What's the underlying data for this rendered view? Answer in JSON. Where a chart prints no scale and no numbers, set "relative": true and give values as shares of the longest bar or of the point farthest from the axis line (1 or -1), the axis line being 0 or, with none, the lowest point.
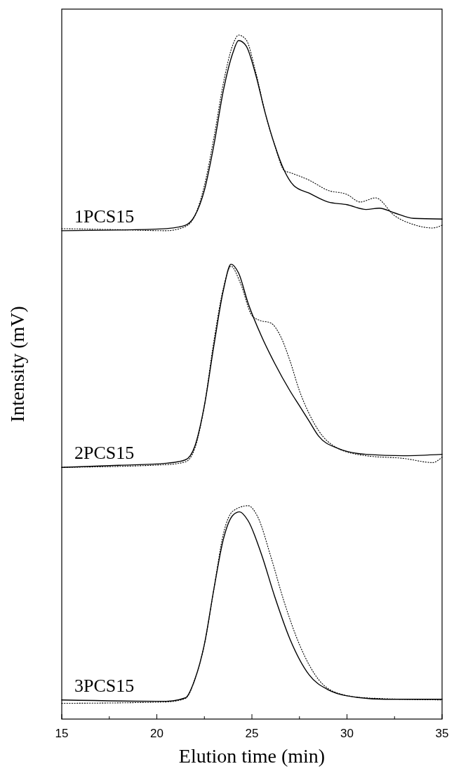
{
  "chart_data": {
    "type": "line",
    "relative": true,
    "xlabel": "Elution time (min)",
    "ylabel": "Intensity (mV)",
    "xlim": [
      15,
      35
    ],
    "xticks": [
      15,
      {
        "value": 17.5,
        "label": null
      },
      20,
      {
        "value": 22.5,
        "label": null
      },
      25,
      {
        "value": 27.5,
        "label": null
      },
      30,
      {
        "value": 32.5,
        "label": null
      },
      35
    ],
    "annotations": [
      "1PCS15",
      "2PCS15",
      "3PCS15"
    ],
    "series": [
      {
        "color": "#000000",
        "line_style": "solid",
        "x": [
          15,
          18,
          20.5,
          21.5,
          22,
          22.5,
          23,
          23.5,
          24,
          24.3,
          24.7,
          25.2,
          25.7,
          26.2,
          26.7,
          27.2,
          28,
          29,
          30,
          31,
          31.7,
          32.5,
          33.5,
          35
        ],
        "values": [
          0.714,
          0.715,
          0.717,
          0.722,
          0.736,
          0.773,
          0.839,
          0.919,
          0.974,
          0.992,
          0.984,
          0.942,
          0.886,
          0.839,
          0.802,
          0.78,
          0.769,
          0.756,
          0.752,
          0.745,
          0.747,
          0.74,
          0.732,
          0.731
        ]
      },
      {
        "color": "#000000",
        "line_style": "dotted",
        "x": [
          15,
          18,
          20.5,
          21.5,
          22,
          22.5,
          23,
          23.5,
          24,
          24.3,
          24.7,
          25.2,
          25.7,
          26.2,
          26.7,
          27,
          28,
          29,
          30,
          30.7,
          31.5,
          32.5,
          33.5,
          34.5,
          35
        ],
        "values": [
          0.717,
          0.7155,
          0.714,
          0.72,
          0.736,
          0.78,
          0.85,
          0.93,
          0.986,
          1,
          0.993,
          0.946,
          0.886,
          0.839,
          0.802,
          0.799,
          0.788,
          0.773,
          0.767,
          0.756,
          0.762,
          0.736,
          0.723,
          0.718,
          0.722
        ]
      },
      {
        "color": "#000000",
        "line_style": "solid",
        "x": [
          15,
          18,
          20.5,
          21.5,
          22,
          22.5,
          23,
          23.5,
          23.9,
          24.3,
          24.8,
          25.5,
          26.2,
          27,
          27.5,
          28,
          28.5,
          29.5,
          31,
          33,
          35
        ],
        "values": [
          0.368,
          0.371,
          0.374,
          0.379,
          0.399,
          0.458,
          0.546,
          0.627,
          0.665,
          0.652,
          0.608,
          0.56,
          0.52,
          0.48,
          0.458,
          0.436,
          0.414,
          0.396,
          0.387,
          0.385,
          0.387
        ]
      },
      {
        "color": "#000000",
        "line_style": "dotted",
        "x": [
          15,
          20.5,
          21.5,
          22,
          22.5,
          23,
          23.5,
          23.9,
          24.4,
          25,
          25.4,
          26,
          26.5,
          27,
          27.5,
          28,
          28.5,
          29.5,
          31,
          33,
          34.5,
          35
        ],
        "values": [
          0.368,
          0.372,
          0.376,
          0.396,
          0.458,
          0.553,
          0.63,
          0.662,
          0.637,
          0.59,
          0.583,
          0.579,
          0.56,
          0.524,
          0.48,
          0.447,
          0.422,
          0.396,
          0.385,
          0.381,
          0.375,
          0.383
        ]
      },
      {
        "color": "#000000",
        "line_style": "solid",
        "x": [
          15,
          20.5,
          21.5,
          22,
          22.5,
          23,
          23.5,
          24,
          24.35,
          24.8,
          25.5,
          26.2,
          27,
          28,
          29,
          30,
          32,
          35
        ],
        "values": [
          0.028,
          0.026,
          0.031,
          0.058,
          0.109,
          0.19,
          0.263,
          0.298,
          0.303,
          0.29,
          0.241,
          0.179,
          0.117,
          0.065,
          0.043,
          0.034,
          0.029,
          0.029
        ]
      },
      {
        "color": "#000000",
        "line_style": "dotted",
        "x": [
          15,
          20.5,
          21.5,
          22,
          22.5,
          23,
          23.5,
          24,
          24.8,
          25.3,
          26,
          26.7,
          27.5,
          28.5,
          29.5,
          31,
          35
        ],
        "values": [
          0.023,
          0.025,
          0.03,
          0.058,
          0.109,
          0.19,
          0.271,
          0.304,
          0.312,
          0.296,
          0.237,
          0.171,
          0.109,
          0.058,
          0.038,
          0.031,
          0.028
        ]
      }
    ]
  }
}
